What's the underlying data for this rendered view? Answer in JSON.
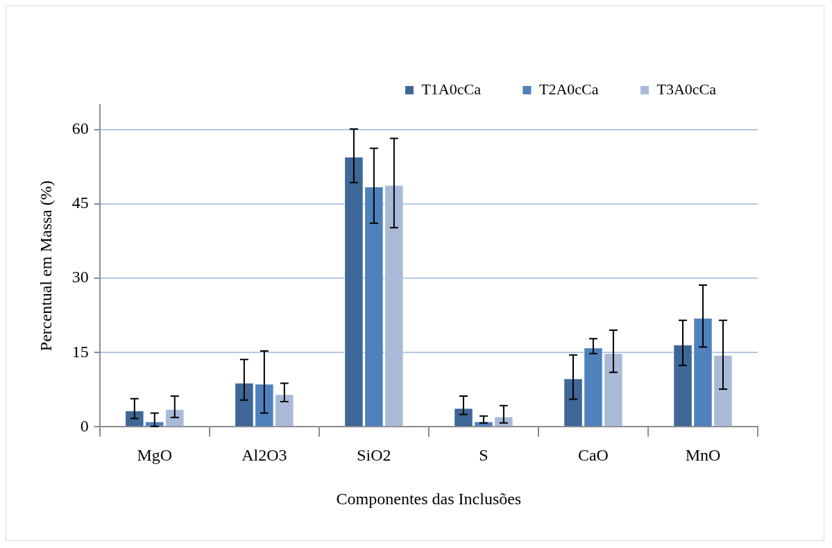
{
  "chart_data": {
    "type": "bar",
    "xlabel": "Componentes das Inclusões",
    "ylabel": "Percentual em Massa (%)",
    "categories": [
      "MgO",
      "Al2O3",
      "SiO2",
      "S",
      "CaO",
      "MnO"
    ],
    "series": [
      {
        "name": "T1A0cCa",
        "color": "#3f6797",
        "values": [
          3.3,
          8.9,
          54.5,
          3.8,
          9.8,
          16.6
        ],
        "errors": [
          [
            1.7,
            5.7
          ],
          [
            5.4,
            13.6
          ],
          [
            49.3,
            60.1
          ],
          [
            2.5,
            6.2
          ],
          [
            5.6,
            14.5
          ],
          [
            12.4,
            21.5
          ]
        ]
      },
      {
        "name": "T2A0cCa",
        "color": "#4f81bd",
        "values": [
          1.1,
          8.7,
          48.5,
          1.1,
          16.0,
          22.0
        ],
        "errors": [
          [
            0.1,
            2.8
          ],
          [
            2.8,
            15.3
          ],
          [
            41.1,
            56.2
          ],
          [
            0.8,
            2.2
          ],
          [
            14.8,
            17.8
          ],
          [
            16.1,
            28.6
          ]
        ]
      },
      {
        "name": "T3A0cCa",
        "color": "#a9bad8",
        "values": [
          3.6,
          6.6,
          48.8,
          2.1,
          14.9,
          14.5
        ],
        "errors": [
          [
            1.9,
            6.2
          ],
          [
            5.1,
            8.8
          ],
          [
            40.2,
            58.2
          ],
          [
            0.8,
            4.3
          ],
          [
            11.0,
            19.5
          ],
          [
            7.6,
            21.5
          ]
        ]
      }
    ],
    "ylim": [
      0,
      65
    ],
    "yticks": [
      0,
      15,
      30,
      45,
      60
    ],
    "grid": "y",
    "legend": "top right"
  }
}
